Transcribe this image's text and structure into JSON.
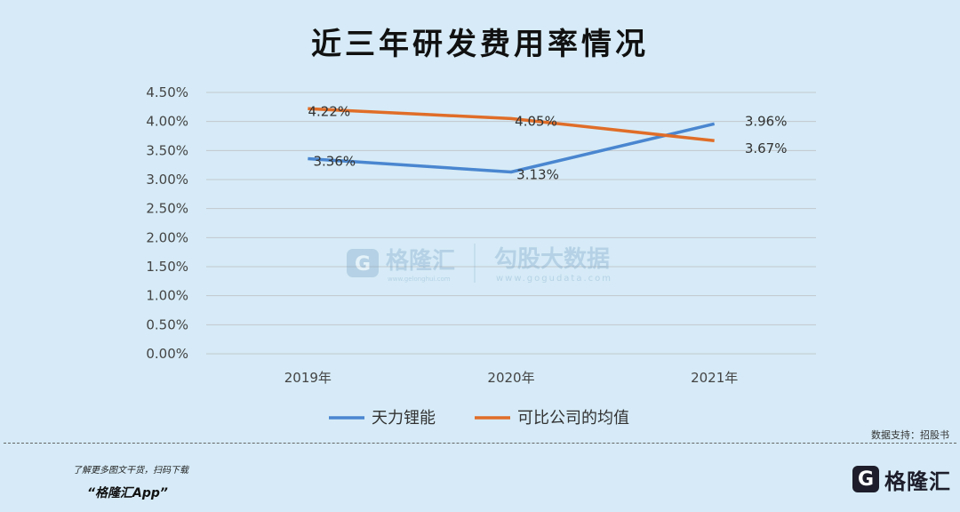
{
  "title": "近三年研发费用率情况",
  "chart_data": {
    "type": "line",
    "title": "近三年研发费用率情况",
    "categories": [
      "2019年",
      "2020年",
      "2021年"
    ],
    "series": [
      {
        "name": "天力锂能",
        "color": "#4a86d0",
        "values": [
          3.36,
          3.13,
          3.96
        ],
        "labels": [
          "3.36%",
          "3.13%",
          "3.96%"
        ]
      },
      {
        "name": "可比公司的均值",
        "color": "#e06d28",
        "values": [
          4.22,
          4.05,
          3.67
        ],
        "labels": [
          "4.22%",
          "4.05%",
          "3.67%"
        ]
      }
    ],
    "ylim": [
      0,
      4.5
    ],
    "yticks": [
      "0.00%",
      "0.50%",
      "1.00%",
      "1.50%",
      "2.00%",
      "2.50%",
      "3.00%",
      "3.50%",
      "4.00%",
      "4.50%"
    ],
    "grid": true,
    "legend_position": "bottom"
  },
  "watermark": {
    "brand_name": "格隆汇",
    "brand_url": "www.gelonghui.com",
    "partner_name": "勾股大数据",
    "partner_url": "www.gogudata.com"
  },
  "footer": {
    "source": "数据支持：招股书",
    "promo_line": "了解更多图文干货，扫码下载",
    "app_name": "“格隆汇App”",
    "brand_logo_letter": "G",
    "brand_name": "格隆汇"
  },
  "colors": {
    "background": "#d6ebf7",
    "grid": "#c2c8cc"
  }
}
